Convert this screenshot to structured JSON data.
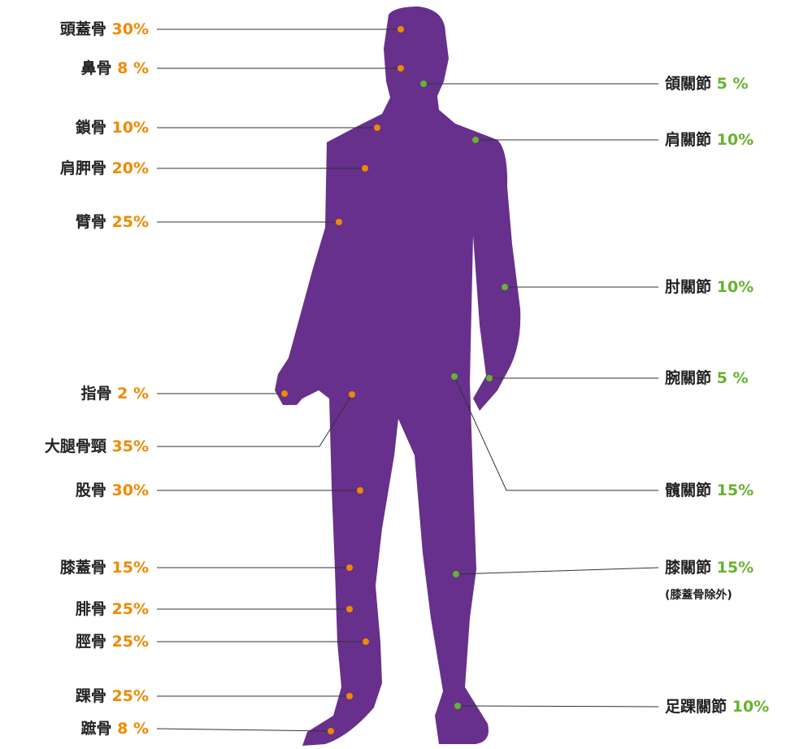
{
  "bones": [
    {
      "name": "頭蓋骨",
      "value": "30%"
    },
    {
      "name": "鼻骨",
      "value": "8 %"
    },
    {
      "name": "鎖骨",
      "value": "10%"
    },
    {
      "name": "肩胛骨",
      "value": "20%"
    },
    {
      "name": "臂骨",
      "value": "25%"
    },
    {
      "name": "指骨",
      "value": "2 %"
    },
    {
      "name": "大腿骨頸",
      "value": "35%"
    },
    {
      "name": "股骨",
      "value": "30%"
    },
    {
      "name": "膝蓋骨",
      "value": "15%"
    },
    {
      "name": "腓骨",
      "value": "25%"
    },
    {
      "name": "脛骨",
      "value": "25%"
    },
    {
      "name": "踝骨",
      "value": "25%"
    },
    {
      "name": "蹠骨",
      "value": "8 %"
    }
  ],
  "joints": [
    {
      "name": "頜關節",
      "value": "5 %"
    },
    {
      "name": "肩關節",
      "value": "10%"
    },
    {
      "name": "肘關節",
      "value": "10%"
    },
    {
      "name": "腕關節",
      "value": "5 %"
    },
    {
      "name": "髖關節",
      "value": "15%"
    },
    {
      "name": "膝關節",
      "value": "15%",
      "note": "(膝蓋骨除外)"
    },
    {
      "name": "足踝關節",
      "value": "10%"
    }
  ]
}
